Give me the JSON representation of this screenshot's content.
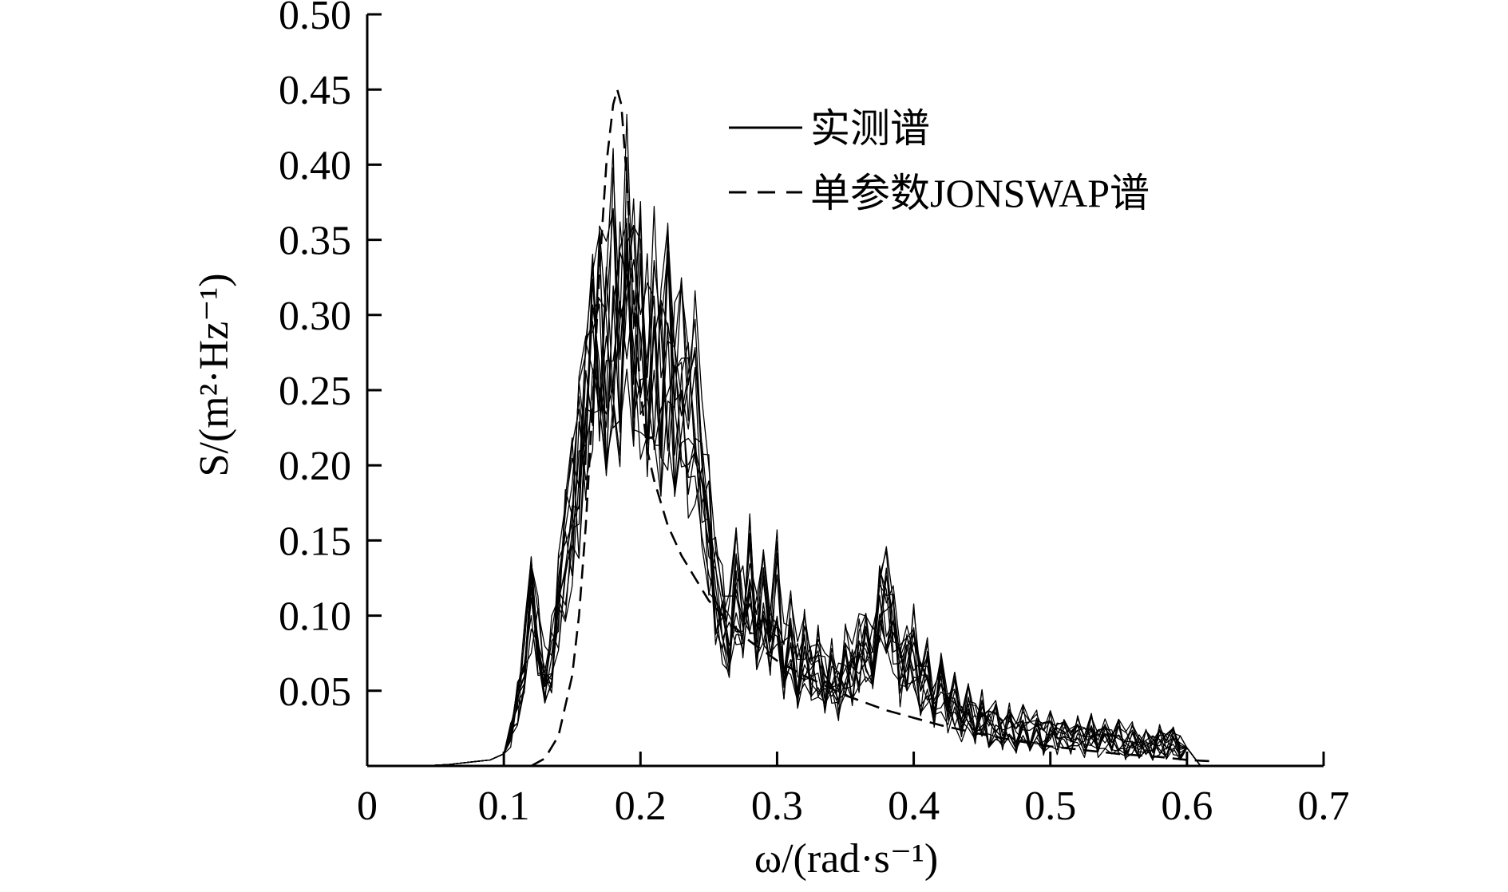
{
  "chart_data": {
    "type": "line",
    "xlabel": "ω/(rad·s⁻¹)",
    "ylabel": "S/(m²·Hz⁻¹)",
    "xlim": [
      0,
      0.7
    ],
    "ylim": [
      0,
      0.5
    ],
    "x_ticks": [
      "0",
      "0.1",
      "0.2",
      "0.3",
      "0.4",
      "0.5",
      "0.6",
      "0.7"
    ],
    "y_ticks": [
      "0.05",
      "0.10",
      "0.15",
      "0.20",
      "0.25",
      "0.30",
      "0.35",
      "0.40",
      "0.45",
      "0.50"
    ],
    "grid": false,
    "legend_position": "top-right",
    "legend": [
      {
        "label": "实测谱",
        "style": "solid"
      },
      {
        "label": "单参数JONSWAP谱",
        "style": "dashed"
      }
    ],
    "measured_base": {
      "x": [
        0.04,
        0.06,
        0.08,
        0.09,
        0.1,
        0.105,
        0.11,
        0.115,
        0.12,
        0.125,
        0.13,
        0.135,
        0.14,
        0.145,
        0.15,
        0.155,
        0.16,
        0.165,
        0.17,
        0.175,
        0.18,
        0.185,
        0.19,
        0.195,
        0.2,
        0.205,
        0.21,
        0.215,
        0.22,
        0.225,
        0.23,
        0.235,
        0.24,
        0.245,
        0.25,
        0.255,
        0.26,
        0.265,
        0.27,
        0.275,
        0.28,
        0.285,
        0.29,
        0.295,
        0.3,
        0.305,
        0.31,
        0.315,
        0.32,
        0.325,
        0.33,
        0.335,
        0.34,
        0.345,
        0.35,
        0.355,
        0.36,
        0.365,
        0.37,
        0.375,
        0.38,
        0.385,
        0.39,
        0.395,
        0.4,
        0.405,
        0.41,
        0.415,
        0.42,
        0.425,
        0.43,
        0.435,
        0.44,
        0.445,
        0.45,
        0.455,
        0.46,
        0.465,
        0.47,
        0.475,
        0.48,
        0.485,
        0.49,
        0.495,
        0.5,
        0.505,
        0.51,
        0.515,
        0.52,
        0.525,
        0.53,
        0.535,
        0.54,
        0.545,
        0.55,
        0.555,
        0.56,
        0.565,
        0.57,
        0.575,
        0.58,
        0.585,
        0.59,
        0.595,
        0.6,
        0.605,
        0.61
      ],
      "y": [
        0.0,
        0.001,
        0.003,
        0.004,
        0.008,
        0.02,
        0.04,
        0.07,
        0.11,
        0.085,
        0.065,
        0.075,
        0.11,
        0.14,
        0.17,
        0.2,
        0.24,
        0.27,
        0.3,
        0.27,
        0.32,
        0.28,
        0.34,
        0.3,
        0.29,
        0.27,
        0.3,
        0.25,
        0.28,
        0.24,
        0.27,
        0.22,
        0.25,
        0.2,
        0.16,
        0.12,
        0.1,
        0.09,
        0.12,
        0.1,
        0.13,
        0.09,
        0.11,
        0.08,
        0.12,
        0.07,
        0.09,
        0.06,
        0.08,
        0.06,
        0.07,
        0.055,
        0.065,
        0.05,
        0.07,
        0.06,
        0.075,
        0.085,
        0.07,
        0.1,
        0.11,
        0.09,
        0.06,
        0.07,
        0.08,
        0.05,
        0.065,
        0.04,
        0.055,
        0.035,
        0.045,
        0.03,
        0.04,
        0.028,
        0.035,
        0.025,
        0.032,
        0.022,
        0.03,
        0.02,
        0.028,
        0.02,
        0.025,
        0.018,
        0.026,
        0.018,
        0.024,
        0.017,
        0.022,
        0.016,
        0.023,
        0.016,
        0.021,
        0.015,
        0.02,
        0.014,
        0.019,
        0.014,
        0.018,
        0.013,
        0.017,
        0.012,
        0.016,
        0.012,
        0.012,
        0.006,
        0.0
      ]
    },
    "measured_curve_count": 14,
    "jonswap": {
      "x": [
        0.12,
        0.13,
        0.14,
        0.15,
        0.155,
        0.16,
        0.165,
        0.17,
        0.175,
        0.18,
        0.183,
        0.186,
        0.19,
        0.195,
        0.2,
        0.205,
        0.21,
        0.22,
        0.23,
        0.24,
        0.25,
        0.26,
        0.28,
        0.3,
        0.32,
        0.35,
        0.38,
        0.4,
        0.42,
        0.45,
        0.48,
        0.5,
        0.52,
        0.55,
        0.58,
        0.6,
        0.62
      ],
      "y": [
        0.0,
        0.005,
        0.02,
        0.06,
        0.1,
        0.16,
        0.24,
        0.33,
        0.4,
        0.44,
        0.45,
        0.44,
        0.39,
        0.31,
        0.25,
        0.21,
        0.19,
        0.16,
        0.14,
        0.125,
        0.11,
        0.1,
        0.083,
        0.07,
        0.06,
        0.047,
        0.037,
        0.032,
        0.027,
        0.021,
        0.016,
        0.013,
        0.011,
        0.008,
        0.006,
        0.004,
        0.003
      ]
    }
  }
}
